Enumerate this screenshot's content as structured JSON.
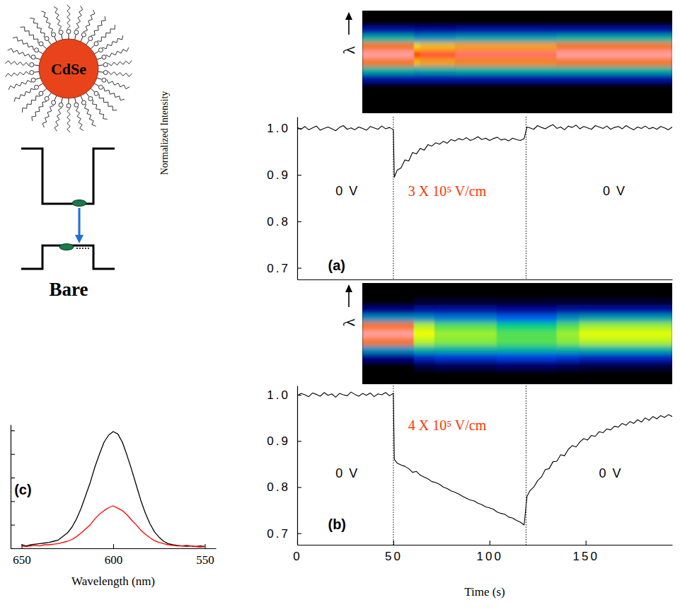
{
  "chart_data": [
    {
      "type": "heatmap",
      "ylabel": "λ",
      "xlim": [
        25,
        175
      ],
      "ylim": [
        575,
        640
      ],
      "tick_labels": false,
      "zlim": [
        0,
        1
      ],
      "x_edges": [
        25,
        50,
        53,
        70,
        119,
        175
      ],
      "y_edges": [
        575,
        580,
        585,
        590,
        595,
        600,
        605,
        610,
        615,
        620,
        625,
        630,
        635,
        640
      ],
      "cells": [
        [
          0,
          0,
          0,
          0,
          0.2,
          0.5,
          0.85,
          1,
          0.85,
          0.5,
          0.2,
          0,
          0
        ],
        [
          0,
          0,
          0,
          0,
          0.2,
          0.48,
          0.8,
          0.9,
          0.78,
          0.45,
          0.18,
          0,
          0
        ],
        [
          0,
          0,
          0,
          0,
          0.2,
          0.49,
          0.82,
          0.93,
          0.8,
          0.46,
          0.19,
          0,
          0
        ],
        [
          0,
          0,
          0,
          0,
          0.2,
          0.5,
          0.84,
          0.96,
          0.82,
          0.48,
          0.2,
          0,
          0
        ],
        [
          0,
          0,
          0,
          0,
          0.2,
          0.5,
          0.85,
          1,
          0.85,
          0.5,
          0.2,
          0,
          0
        ]
      ]
    },
    {
      "type": "line",
      "ylabel": "Normalized Intensity",
      "xlim": [
        0,
        195
      ],
      "ylim": [
        0.675,
        1.025
      ],
      "yticks": [
        {
          "value": 1,
          "label": "1.0"
        },
        0.9,
        0.8,
        0.7
      ],
      "tick_labels": "y",
      "x": [
        0,
        2,
        4,
        6,
        8,
        10,
        12,
        14,
        16,
        18,
        20,
        22,
        24,
        26,
        28,
        30,
        32,
        34,
        36,
        38,
        40,
        42,
        44,
        46,
        48,
        50,
        50.5,
        52,
        54,
        56,
        58,
        60,
        62,
        64,
        66,
        68,
        70,
        72,
        74,
        76,
        78,
        80,
        82,
        84,
        86,
        88,
        90,
        92,
        94,
        96,
        98,
        100,
        102,
        104,
        106,
        108,
        110,
        112,
        114,
        116,
        118,
        119.5,
        121,
        123,
        125,
        127,
        129,
        131,
        133,
        135,
        137,
        139,
        141,
        143,
        145,
        147,
        149,
        151,
        153,
        155,
        157,
        159,
        161,
        163,
        165,
        167,
        169,
        171,
        173,
        175,
        177,
        179,
        181,
        183,
        185,
        187,
        189,
        191,
        193,
        195
      ],
      "series": [
        {
          "color": "#000000",
          "values": [
            1.002,
            0.998,
            1.004,
            0.997,
            1.001,
            1.005,
            0.996,
            1.0,
            1.003,
            0.999,
            0.995,
            1.002,
            1.006,
            0.998,
            1.001,
            0.997,
            1.003,
            1.0,
            0.996,
            1.004,
            1.001,
            0.998,
            1.005,
            0.999,
            1.002,
            0.997,
            0.895,
            0.91,
            0.915,
            0.932,
            0.93,
            0.948,
            0.945,
            0.957,
            0.953,
            0.965,
            0.962,
            0.969,
            0.966,
            0.972,
            0.968,
            0.976,
            0.973,
            0.978,
            0.975,
            0.98,
            0.974,
            0.977,
            0.982,
            0.976,
            0.979,
            0.974,
            0.978,
            0.981,
            0.975,
            0.977,
            0.973,
            0.979,
            0.976,
            0.974,
            0.978,
            1.003,
            1.001,
            0.998,
            1.006,
            1.002,
            0.999,
            1.004,
            1.008,
            1.0,
            1.003,
            0.997,
            1.005,
            1.002,
            1.007,
            0.999,
            1.004,
            1.001,
            0.998,
            1.006,
            1.003,
            1.0,
            1.005,
            0.998,
            1.002,
            1.004,
            0.999,
            1.006,
            1.001,
            0.997,
            1.003,
            1.0,
            1.005,
            0.999,
            1.002,
            0.998,
            1.004,
            1.001,
            0.997,
            1.003
          ]
        }
      ],
      "switch_times": [
        50,
        119
      ],
      "annotations": [
        {
          "text": "0 V",
          "x": 26,
          "y": 0.865
        },
        {
          "text": "3 X 10⁵ V/cm",
          "x": 78,
          "y": 0.865,
          "color": "#ff3300"
        },
        {
          "text": "0 V",
          "x": 165,
          "y": 0.865
        },
        {
          "text": "(a)",
          "x": 16,
          "y": 0.705
        }
      ]
    },
    {
      "type": "heatmap",
      "ylabel": "λ",
      "xlim": [
        25,
        175
      ],
      "ylim": [
        575,
        640
      ],
      "tick_labels": false,
      "zlim": [
        0,
        1
      ],
      "x_edges": [
        25,
        50,
        60,
        90,
        119,
        130,
        175
      ],
      "y_edges": [
        575,
        580,
        585,
        590,
        595,
        600,
        605,
        610,
        615,
        620,
        625,
        630,
        635,
        640
      ],
      "cells": [
        [
          0,
          0,
          0,
          0.15,
          0.45,
          0.85,
          1,
          0.85,
          0.45,
          0.15,
          0,
          0,
          0
        ],
        [
          0,
          0,
          0.08,
          0.25,
          0.5,
          0.7,
          0.75,
          0.7,
          0.45,
          0.2,
          0.05,
          0,
          0
        ],
        [
          0,
          0,
          0.1,
          0.28,
          0.5,
          0.66,
          0.68,
          0.62,
          0.42,
          0.2,
          0.05,
          0,
          0
        ],
        [
          0,
          0,
          0.12,
          0.3,
          0.5,
          0.62,
          0.62,
          0.55,
          0.38,
          0.18,
          0.05,
          0,
          0
        ],
        [
          0,
          0,
          0.1,
          0.28,
          0.5,
          0.66,
          0.68,
          0.62,
          0.45,
          0.2,
          0.05,
          0,
          0
        ],
        [
          0,
          0,
          0.08,
          0.25,
          0.5,
          0.7,
          0.74,
          0.68,
          0.48,
          0.2,
          0.05,
          0,
          0
        ]
      ]
    },
    {
      "type": "line",
      "xlabel": "Time (s)",
      "xlim": [
        0,
        195
      ],
      "ylim": [
        0.675,
        1.02
      ],
      "xticks": [
        0,
        50,
        100,
        150
      ],
      "yticks": [
        {
          "value": 1,
          "label": "1.0"
        },
        0.9,
        0.8,
        0.7
      ],
      "x": [
        0,
        2,
        4,
        6,
        8,
        10,
        12,
        14,
        16,
        18,
        20,
        22,
        24,
        26,
        28,
        30,
        32,
        34,
        36,
        38,
        40,
        42,
        44,
        46,
        48,
        50,
        50.5,
        52,
        54,
        56,
        58,
        60,
        62,
        64,
        66,
        68,
        70,
        72,
        74,
        76,
        78,
        80,
        82,
        84,
        86,
        88,
        90,
        92,
        94,
        96,
        98,
        100,
        102,
        104,
        106,
        108,
        110,
        112,
        114,
        116,
        118,
        119.5,
        121,
        123,
        125,
        127,
        129,
        131,
        133,
        135,
        137,
        139,
        141,
        143,
        145,
        147,
        149,
        151,
        153,
        155,
        157,
        159,
        161,
        163,
        165,
        167,
        169,
        171,
        173,
        175,
        177,
        179,
        181,
        183,
        185,
        187,
        189,
        191,
        193,
        195
      ],
      "series": [
        {
          "color": "#000000",
          "values": [
            0.998,
            1.003,
            1.0,
            0.996,
            1.004,
            1.001,
            0.997,
            1.005,
            0.999,
            1.002,
            0.995,
            1.003,
            1.0,
            0.998,
            1.006,
            1.001,
            0.997,
            1.003,
            0.999,
            1.004,
            0.996,
            1.002,
            1.0,
            1.005,
            0.998,
            1.003,
            0.86,
            0.852,
            0.848,
            0.845,
            0.84,
            0.832,
            0.834,
            0.826,
            0.822,
            0.818,
            0.812,
            0.81,
            0.806,
            0.8,
            0.797,
            0.792,
            0.789,
            0.785,
            0.78,
            0.776,
            0.772,
            0.77,
            0.765,
            0.762,
            0.757,
            0.755,
            0.752,
            0.746,
            0.743,
            0.741,
            0.735,
            0.733,
            0.728,
            0.724,
            0.718,
            0.78,
            0.792,
            0.8,
            0.814,
            0.822,
            0.838,
            0.84,
            0.855,
            0.856,
            0.87,
            0.868,
            0.882,
            0.89,
            0.887,
            0.898,
            0.905,
            0.902,
            0.912,
            0.91,
            0.92,
            0.918,
            0.926,
            0.924,
            0.932,
            0.93,
            0.938,
            0.934,
            0.942,
            0.938,
            0.946,
            0.941,
            0.95,
            0.945,
            0.953,
            0.948,
            0.955,
            0.951,
            0.957,
            0.953
          ]
        }
      ],
      "switch_times": [
        50,
        119
      ],
      "annotations": [
        {
          "text": "4 X 10⁵ V/cm",
          "x": 78,
          "y": 0.934,
          "color": "#ff3300"
        },
        {
          "text": "0 V",
          "x": 26,
          "y": 0.83
        },
        {
          "text": "0 V",
          "x": 163,
          "y": 0.83
        },
        {
          "text": "(b)",
          "x": 16,
          "y": 0.72
        }
      ]
    },
    {
      "type": "line",
      "xlabel": "Wavelength (nm)",
      "xlim": [
        656,
        544
      ],
      "ylim": [
        0,
        1.05
      ],
      "xticks": [
        650,
        600,
        550
      ],
      "yticks": [
        0,
        0.2,
        0.4,
        0.6,
        0.8,
        1
      ],
      "tick_labels": "x",
      "x": [
        650,
        647.5,
        645,
        642.5,
        640,
        637.5,
        635,
        632.5,
        630,
        627.5,
        625,
        622.5,
        620,
        617.5,
        615,
        612.5,
        610,
        607.5,
        605,
        602.5,
        600,
        597.5,
        595,
        592.5,
        590,
        587.5,
        585,
        582.5,
        580,
        577.5,
        575,
        572.5,
        570,
        567.5,
        565,
        562.5,
        560,
        557.5,
        555,
        552.5,
        550
      ],
      "series": [
        {
          "color": "#000000",
          "values": [
            0.03,
            0.02,
            0.03,
            0.035,
            0.04,
            0.045,
            0.05,
            0.06,
            0.07,
            0.1,
            0.13,
            0.18,
            0.25,
            0.34,
            0.45,
            0.56,
            0.69,
            0.8,
            0.9,
            0.96,
            0.99,
            0.97,
            0.9,
            0.79,
            0.67,
            0.54,
            0.41,
            0.3,
            0.21,
            0.14,
            0.095,
            0.06,
            0.04,
            0.03,
            0.025,
            0.02,
            0.025,
            0.02,
            0.015,
            0.02,
            0.015
          ]
        },
        {
          "color": "#ff0000",
          "values": [
            0.02,
            0.015,
            0.02,
            0.025,
            0.02,
            0.03,
            0.03,
            0.035,
            0.04,
            0.05,
            0.06,
            0.075,
            0.1,
            0.13,
            0.165,
            0.2,
            0.25,
            0.29,
            0.32,
            0.345,
            0.36,
            0.34,
            0.32,
            0.285,
            0.24,
            0.2,
            0.155,
            0.12,
            0.09,
            0.065,
            0.05,
            0.04,
            0.03,
            0.025,
            0.02,
            0.02,
            0.015,
            0.02,
            0.015,
            0.01,
            0.015
          ]
        }
      ],
      "annotations": [
        {
          "text": "(c)",
          "x": 654,
          "y": 0.5
        }
      ]
    }
  ],
  "diagram": {
    "particle": "CdSe",
    "caption": "Bare"
  }
}
